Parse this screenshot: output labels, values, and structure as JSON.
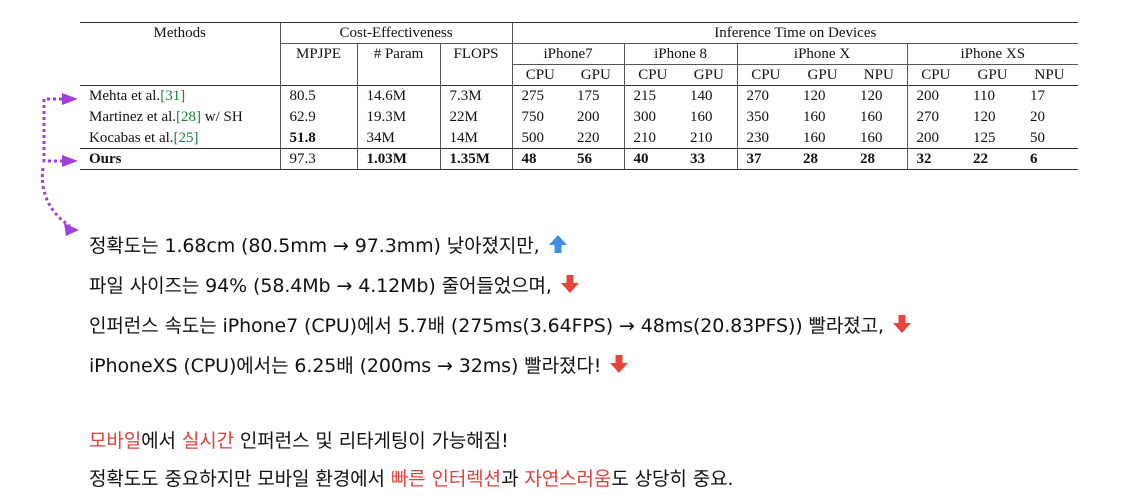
{
  "table": {
    "header": {
      "methods": "Methods",
      "cost_effectiveness": "Cost-Effectiveness",
      "inference_time": "Inference Time on Devices",
      "metrics": [
        "MPJPE",
        "# Param",
        "FLOPS"
      ],
      "devices": [
        "iPhone7",
        "iPhone 8",
        "iPhone X",
        "iPhone XS"
      ],
      "units": [
        "CPU",
        "GPU",
        "CPU",
        "GPU",
        "CPU",
        "GPU",
        "NPU",
        "CPU",
        "GPU",
        "NPU"
      ]
    },
    "rows": [
      {
        "method": "Mehta et al.",
        "cite": "[31]",
        "suffix": "",
        "mpjpe": "80.5",
        "param": "14.6M",
        "flops": "7.3M",
        "times": [
          "275",
          "175",
          "215",
          "140",
          "270",
          "120",
          "120",
          "200",
          "110",
          "17"
        ]
      },
      {
        "method": "Martinez et al.",
        "cite": "[28]",
        "suffix": " w/ SH",
        "mpjpe": "62.9",
        "param": "19.3M",
        "flops": "22M",
        "times": [
          "750",
          "200",
          "300",
          "160",
          "350",
          "160",
          "160",
          "270",
          "120",
          "20"
        ]
      },
      {
        "method": "Kocabas et al.",
        "cite": "[25]",
        "suffix": "",
        "mpjpe": "51.8",
        "param": "34M",
        "flops": "14M",
        "times": [
          "500",
          "220",
          "210",
          "210",
          "230",
          "160",
          "160",
          "200",
          "125",
          "50"
        ]
      },
      {
        "method": "Ours",
        "cite": "",
        "suffix": "",
        "mpjpe": "97.3",
        "param": "1.03M",
        "flops": "1.35M",
        "times": [
          "48",
          "56",
          "40",
          "33",
          "37",
          "28",
          "28",
          "32",
          "22",
          "6"
        ]
      }
    ]
  },
  "notes": {
    "line1": "정확도는 1.68cm (80.5mm → 97.3mm) 낮아졌지만,",
    "line2": "파일 사이즈는 94% (58.4Mb → 4.12Mb) 줄어들었으며,",
    "line3": "인퍼런스 속도는 iPhone7 (CPU)에서 5.7배 (275ms(3.64FPS) → 48ms(20.83PFS)) 빨라졌고,",
    "line4": "iPhoneXS (CPU)에서는 6.25배 (200ms → 32ms) 빨라졌다!",
    "summary1": {
      "a": "모바일",
      "b": "에서 ",
      "c": "실시간",
      "d": " 인퍼런스 및 리타게팅이 가능해짐!"
    },
    "summary2": {
      "a": "정확도도 중요하지만 모바일 환경에서 ",
      "b": "빠른 인터렉션",
      "c": "과 ",
      "d": "자연스러움",
      "e": "도 상당히 중요."
    }
  },
  "colors": {
    "accent_red": "#e0403a",
    "arrow_up_blue": "#3b8fe8",
    "arrow_down_red": "#e8443c",
    "connector_purple": "#a23fd6",
    "citation_green": "#1a7f3a"
  },
  "icons": {
    "up": "arrow-up-icon",
    "down": "arrow-down-icon"
  }
}
